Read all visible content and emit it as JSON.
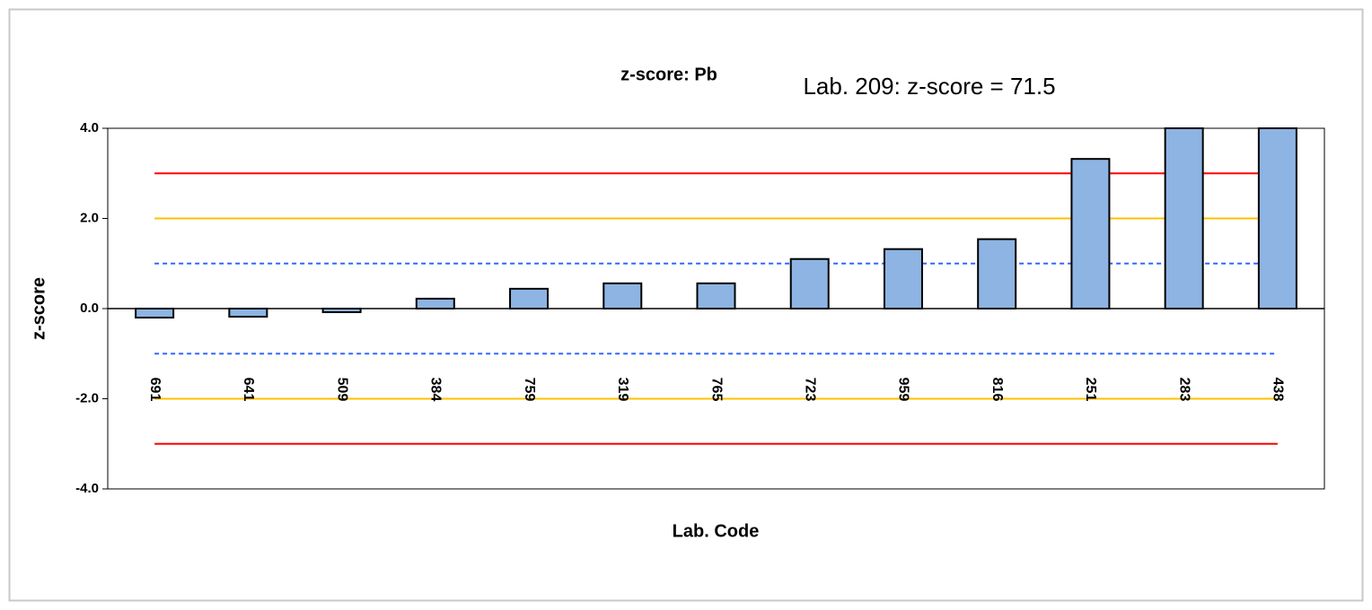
{
  "chart_data": {
    "type": "bar",
    "title": "z-score: Pb",
    "annotation": "Lab.  209: z-score = 71.5",
    "x_label": "Lab. Code",
    "y_label": "z-score",
    "categories": [
      "691",
      "641",
      "509",
      "384",
      "759",
      "319",
      "765",
      "723",
      "959",
      "816",
      "251",
      "283",
      "438"
    ],
    "values": [
      -0.2,
      -0.18,
      -0.08,
      0.22,
      0.44,
      0.56,
      0.56,
      1.1,
      1.32,
      1.54,
      3.32,
      4.0,
      4.0
    ],
    "color": "#8db4e2",
    "ylim": [
      -4,
      4
    ],
    "yticks": [
      {
        "value": -4,
        "label": "-4.0"
      },
      {
        "value": -2,
        "label": "-2.0"
      },
      {
        "value": 0,
        "label": "0.0"
      },
      {
        "value": 2,
        "label": "2.0"
      },
      {
        "value": 4,
        "label": "4.0"
      }
    ],
    "reference_lines": [
      {
        "value": 3,
        "color": "#ff0000",
        "style": "solid"
      },
      {
        "value": -3,
        "color": "#ff0000",
        "style": "solid"
      },
      {
        "value": 2,
        "color": "#ffc000",
        "style": "solid"
      },
      {
        "value": -2,
        "color": "#ffc000",
        "style": "solid"
      },
      {
        "value": 1,
        "color": "#3366ff",
        "style": "dashed"
      },
      {
        "value": -1,
        "color": "#3366ff",
        "style": "dashed"
      }
    ]
  }
}
